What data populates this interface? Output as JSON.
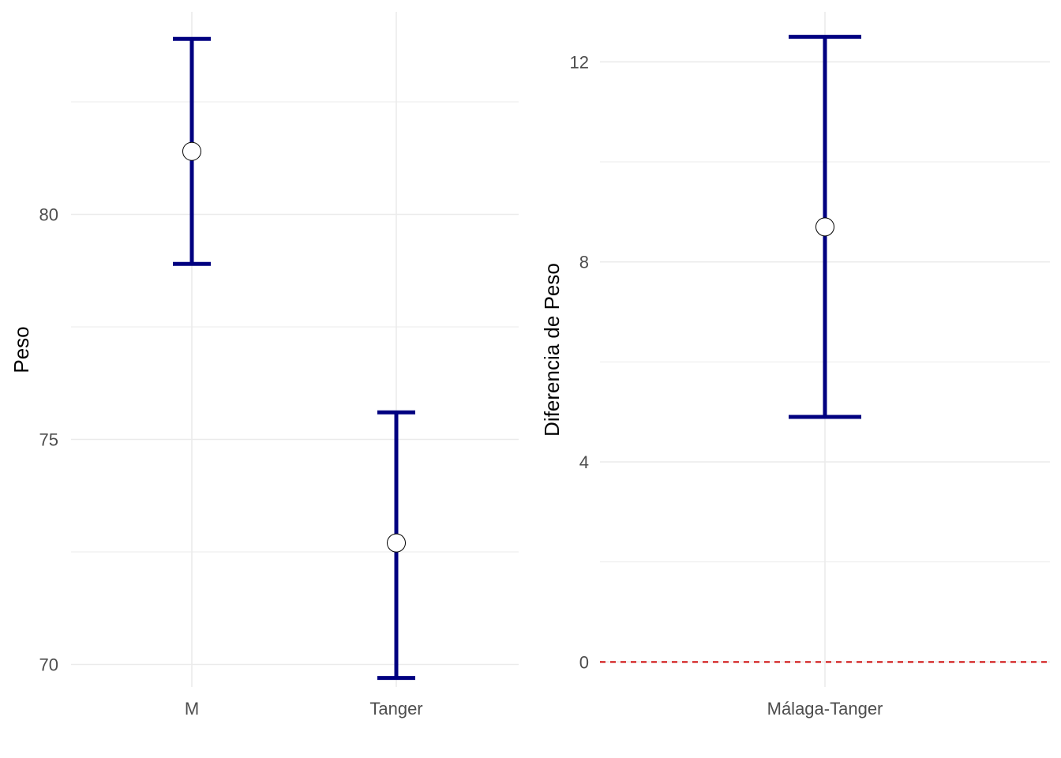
{
  "chart_data": [
    {
      "type": "errorbar",
      "title": "",
      "xlabel": "",
      "ylabel": "Peso",
      "categories": [
        "M",
        "Tanger"
      ],
      "means": [
        81.4,
        72.7
      ],
      "lower": [
        78.9,
        69.7
      ],
      "upper": [
        83.9,
        75.6
      ],
      "ylim": [
        69.5,
        84.5
      ],
      "yticks": [
        70,
        75,
        80
      ],
      "grid": true,
      "colors": {
        "bar": "#000080",
        "point_fill": "#ffffff",
        "point_stroke": "#000000"
      }
    },
    {
      "type": "errorbar",
      "title": "",
      "xlabel": "",
      "ylabel": "Diferencia de Peso",
      "categories": [
        "Málaga-Tanger"
      ],
      "means": [
        8.7
      ],
      "lower": [
        4.9
      ],
      "upper": [
        12.5
      ],
      "ylim": [
        -0.5,
        13.0
      ],
      "yticks": [
        0,
        4,
        8,
        12
      ],
      "reference_line": {
        "y": 0,
        "style": "dashed",
        "color": "#cc0000"
      },
      "grid": true,
      "colors": {
        "bar": "#000080",
        "point_fill": "#ffffff",
        "point_stroke": "#000000"
      }
    }
  ]
}
